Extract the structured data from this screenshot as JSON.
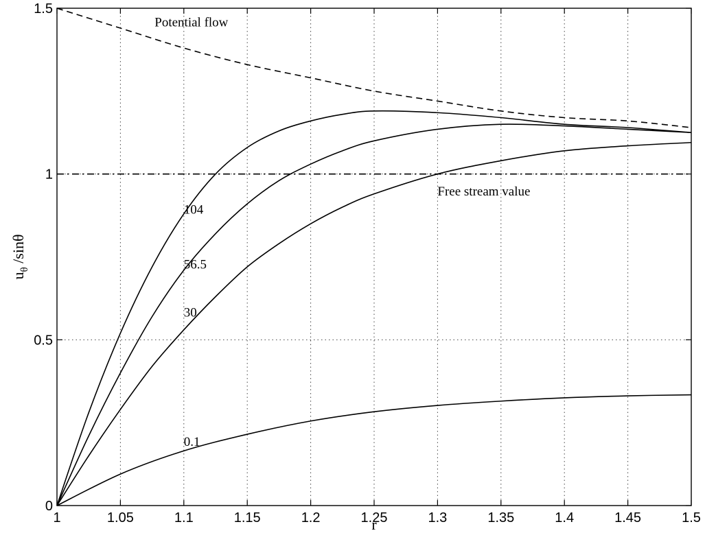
{
  "chart_data": {
    "type": "line",
    "xlabel": "r",
    "ylabel_main": "u",
    "ylabel_sub": "θ",
    "ylabel_rest": " /sinθ",
    "xlim": [
      1,
      1.5
    ],
    "ylim": [
      0,
      1.5
    ],
    "grid": true,
    "x_ticks": [
      1,
      1.05,
      1.1,
      1.15,
      1.2,
      1.25,
      1.3,
      1.35,
      1.4,
      1.45,
      1.5
    ],
    "x_tick_labels": [
      "1",
      "1.05",
      "1.1",
      "1.15",
      "1.2",
      "1.25",
      "1.3",
      "1.35",
      "1.4",
      "1.45",
      "1.5"
    ],
    "y_ticks": [
      0,
      0.5,
      1,
      1.5
    ],
    "y_tick_labels": [
      "0",
      "0.5",
      "1",
      "1.5"
    ],
    "series": [
      {
        "label": "Potential flow",
        "style": "dashed",
        "x": [
          1,
          1.05,
          1.1,
          1.15,
          1.2,
          1.25,
          1.3,
          1.35,
          1.4,
          1.45,
          1.5
        ],
        "y": [
          1.5,
          1.44,
          1.38,
          1.33,
          1.29,
          1.25,
          1.22,
          1.19,
          1.17,
          1.16,
          1.14
        ]
      },
      {
        "label": "Free stream value",
        "style": "dashdot",
        "x": [
          1,
          1.5
        ],
        "y": [
          1.0,
          1.0
        ]
      },
      {
        "label": "104",
        "style": "solid",
        "x": [
          1,
          1.025,
          1.05,
          1.075,
          1.1,
          1.125,
          1.15,
          1.175,
          1.2,
          1.225,
          1.25,
          1.3,
          1.35,
          1.4,
          1.45,
          1.5
        ],
        "y": [
          0,
          0.28,
          0.52,
          0.72,
          0.88,
          1.0,
          1.08,
          1.13,
          1.16,
          1.18,
          1.19,
          1.185,
          1.17,
          1.15,
          1.14,
          1.125
        ]
      },
      {
        "label": "56.5",
        "style": "solid",
        "x": [
          1,
          1.025,
          1.05,
          1.075,
          1.1,
          1.125,
          1.15,
          1.175,
          1.2,
          1.225,
          1.25,
          1.3,
          1.35,
          1.4,
          1.45,
          1.5
        ],
        "y": [
          0,
          0.21,
          0.4,
          0.57,
          0.71,
          0.82,
          0.91,
          0.98,
          1.03,
          1.07,
          1.1,
          1.135,
          1.15,
          1.145,
          1.135,
          1.125
        ]
      },
      {
        "label": "30",
        "style": "solid",
        "x": [
          1,
          1.025,
          1.05,
          1.075,
          1.1,
          1.125,
          1.15,
          1.175,
          1.2,
          1.225,
          1.25,
          1.3,
          1.35,
          1.4,
          1.45,
          1.5
        ],
        "y": [
          0,
          0.15,
          0.29,
          0.42,
          0.53,
          0.63,
          0.72,
          0.79,
          0.85,
          0.9,
          0.94,
          1.0,
          1.04,
          1.07,
          1.085,
          1.095
        ]
      },
      {
        "label": "0.1",
        "style": "solid",
        "x": [
          1,
          1.05,
          1.1,
          1.15,
          1.2,
          1.25,
          1.3,
          1.35,
          1.4,
          1.45,
          1.5
        ],
        "y": [
          0,
          0.095,
          0.165,
          0.215,
          0.255,
          0.283,
          0.302,
          0.315,
          0.325,
          0.331,
          0.334
        ]
      }
    ],
    "annotations": [
      {
        "text": "Potential flow",
        "x": 1.077,
        "y": 1.445
      },
      {
        "text": "Free stream value",
        "x": 1.3,
        "y": 0.935
      },
      {
        "text": "104",
        "x": 1.1,
        "y": 0.88
      },
      {
        "text": "56.5",
        "x": 1.1,
        "y": 0.715
      },
      {
        "text": "30",
        "x": 1.1,
        "y": 0.57
      },
      {
        "text": "0.1",
        "x": 1.1,
        "y": 0.18
      }
    ]
  }
}
